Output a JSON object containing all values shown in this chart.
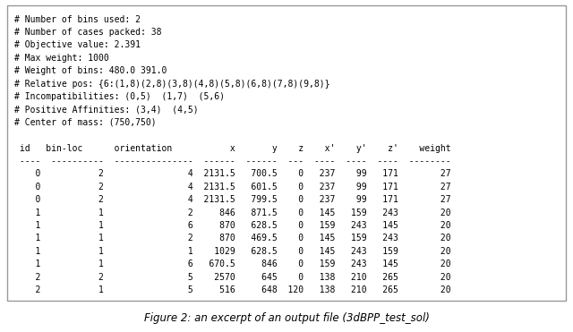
{
  "text_block": "# Number of bins used: 2\n# Number of cases packed: 38\n# Objective value: 2.391\n# Max weight: 1000\n# Weight of bins: 480.0 391.0\n# Relative pos: {6:(1,8)(2,8)(3,8)(4,8)(5,8)(6,8)(7,8)(9,8)}\n# Incompatibilities: (0,5)  (1,7)  (5,6)\n# Positive Affinities: (3,4)  (4,5)\n# Center of mass: (750,750)\n\n id   bin-loc      orientation           x       y    z    x'    y'    z'    weight\n ----  ----------  ---------------  ------  ------  ---  ----  ----  ----  --------\n    0           2                4  2131.5   700.5    0   237    99   171        27\n    0           2                4  2131.5   601.5    0   237    99   171        27\n    0           2                4  2131.5   799.5    0   237    99   171        27\n    1           1                2     846   871.5    0   145   159   243        20\n    1           1                6     870   628.5    0   159   243   145        20\n    1           1                2     870   469.5    0   145   159   243        20\n    1           1                1    1029   628.5    0   145   243   159        20\n    1           1                6   670.5     846    0   159   243   145        20\n    2           2                5    2570     645    0   138   210   265        20\n    2           1                5     516     648  120   138   210   265        20",
  "caption": "Figure 2: an excerpt of an output file (3dBPP_test_sol)",
  "bg_color": "#ffffff",
  "border_color": "#999999",
  "text_color": "#000000",
  "fig_width": 6.4,
  "fig_height": 3.71,
  "font_size": 7.0,
  "caption_font_size": 8.5
}
